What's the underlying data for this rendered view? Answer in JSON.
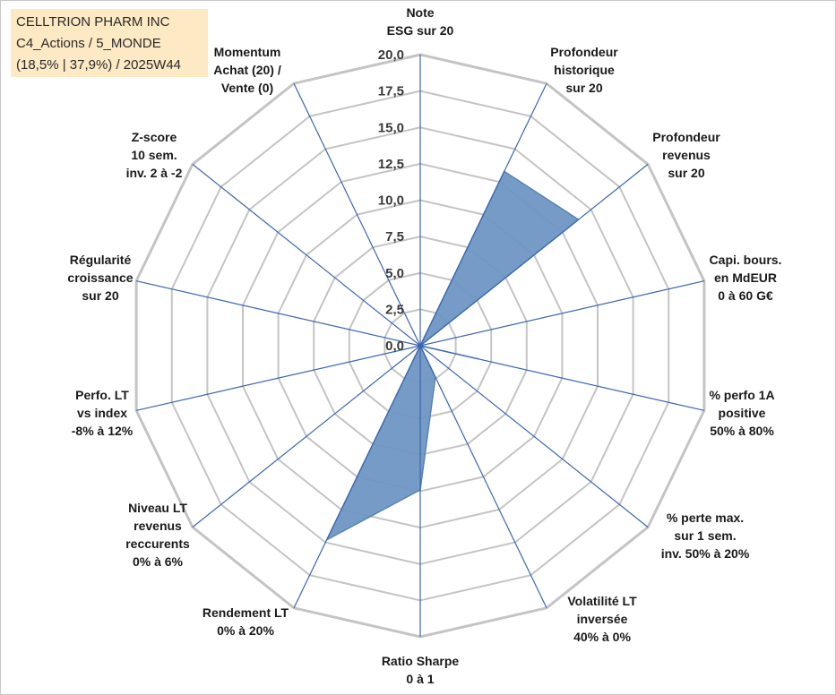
{
  "title_lines": [
    "CELLTRION PHARM INC",
    "C4_Actions / 5_MONDE",
    "(18,5% | 37,9%) / 2025W44"
  ],
  "chart_data": {
    "type": "radar",
    "rmin": 0,
    "rmax": 20,
    "tick_labels": [
      "0,0",
      "2,5",
      "5,0",
      "7,5",
      "10,0",
      "12,5",
      "15,0",
      "17,5",
      "20,0"
    ],
    "axes": [
      {
        "label": [
          "Note",
          "ESG sur 20"
        ]
      },
      {
        "label": [
          "Profondeur",
          "historique",
          "sur 20"
        ]
      },
      {
        "label": [
          "Profondeur",
          "revenus",
          "sur 20"
        ]
      },
      {
        "label": [
          "Capi. bours.",
          "en MdEUR",
          "0 à 60 G€"
        ]
      },
      {
        "label": [
          "% perfo 1A",
          "positive",
          "50% à 80%"
        ]
      },
      {
        "label": [
          "% perte max.",
          "sur 1 sem.",
          "inv. 50% à 20%"
        ]
      },
      {
        "label": [
          "Volatilité LT",
          "inversée",
          "40% à 0%"
        ]
      },
      {
        "label": [
          "Ratio Sharpe",
          "0 à 1"
        ]
      },
      {
        "label": [
          "Rendement LT",
          "0% à 20%"
        ]
      },
      {
        "label": [
          "Niveau LT",
          "revenus",
          "reccurents",
          "0% à 6%"
        ]
      },
      {
        "label": [
          "Perfo. LT",
          "vs index",
          "-8% à 12%"
        ]
      },
      {
        "label": [
          "Régularité",
          "croissance",
          "sur 20"
        ]
      },
      {
        "label": [
          "Z-score",
          "10 sem.",
          "inv. 2 à -2"
        ]
      },
      {
        "label": [
          "Momentum",
          "Achat (20) /",
          "Vente (0)"
        ]
      }
    ],
    "series": [
      {
        "values": [
          0,
          13.3,
          13.9,
          0,
          4.1,
          0,
          2.4,
          9.9,
          14.8,
          0,
          0,
          0,
          0,
          0
        ],
        "fill": "#6f96c3",
        "stroke": "#5a83b3"
      }
    ],
    "grid_color": "#c4c4c4",
    "spoke_color": "#3c66b0",
    "grid": true
  }
}
